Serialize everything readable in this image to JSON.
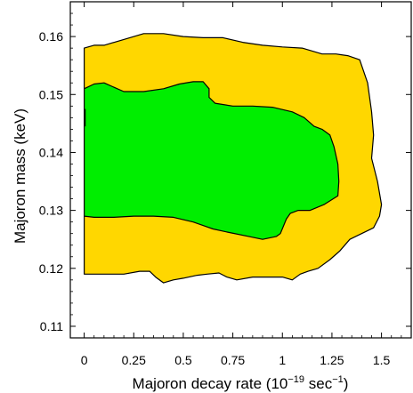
{
  "chart_data": {
    "type": "contour",
    "title": "",
    "xlabel": "Majoron decay rate (10−19 sec−1)",
    "xlabel_parts": {
      "prefix": "Majoron decay rate (10",
      "exp1": "−19",
      "mid": " sec",
      "exp2": "−1",
      "suffix": ")"
    },
    "ylabel": "Majoron mass (keV)",
    "xlim": [
      -0.07,
      1.65
    ],
    "ylim": [
      0.108,
      0.166
    ],
    "x_ticks": [
      "0",
      "0.25",
      "0.5",
      "0.75",
      "1",
      "1.25",
      "1.5"
    ],
    "x_tick_values": [
      0,
      0.25,
      0.5,
      0.75,
      1,
      1.25,
      1.5
    ],
    "y_ticks": [
      "0.11",
      "0.12",
      "0.13",
      "0.14",
      "0.15",
      "0.16"
    ],
    "y_tick_values": [
      0.11,
      0.12,
      0.13,
      0.14,
      0.15,
      0.16
    ],
    "grid": false,
    "legend": "none",
    "regions": [
      {
        "level": "outer",
        "color": "#FFD700",
        "points": [
          [
            0.0,
            0.158
          ],
          [
            0.05,
            0.1585
          ],
          [
            0.1,
            0.1585
          ],
          [
            0.2,
            0.1595
          ],
          [
            0.3,
            0.1605
          ],
          [
            0.4,
            0.1605
          ],
          [
            0.5,
            0.16
          ],
          [
            0.6,
            0.1598
          ],
          [
            0.7,
            0.1598
          ],
          [
            0.8,
            0.159
          ],
          [
            0.9,
            0.1585
          ],
          [
            1.0,
            0.1582
          ],
          [
            1.1,
            0.158
          ],
          [
            1.2,
            0.157
          ],
          [
            1.27,
            0.157
          ],
          [
            1.33,
            0.1567
          ],
          [
            1.39,
            0.156
          ],
          [
            1.43,
            0.152
          ],
          [
            1.45,
            0.147
          ],
          [
            1.46,
            0.143
          ],
          [
            1.45,
            0.139
          ],
          [
            1.48,
            0.135
          ],
          [
            1.5,
            0.131
          ],
          [
            1.49,
            0.129
          ],
          [
            1.46,
            0.127
          ],
          [
            1.4,
            0.126
          ],
          [
            1.34,
            0.125
          ],
          [
            1.29,
            0.123
          ],
          [
            1.24,
            0.1215
          ],
          [
            1.18,
            0.12
          ],
          [
            1.13,
            0.1195
          ],
          [
            1.09,
            0.119
          ],
          [
            1.05,
            0.118
          ],
          [
            1.0,
            0.1185
          ],
          [
            0.95,
            0.1185
          ],
          [
            0.85,
            0.1185
          ],
          [
            0.77,
            0.118
          ],
          [
            0.72,
            0.1185
          ],
          [
            0.68,
            0.1192
          ],
          [
            0.62,
            0.119
          ],
          [
            0.57,
            0.1188
          ],
          [
            0.5,
            0.1183
          ],
          [
            0.45,
            0.118
          ],
          [
            0.4,
            0.1175
          ],
          [
            0.36,
            0.1185
          ],
          [
            0.33,
            0.1195
          ],
          [
            0.28,
            0.1195
          ],
          [
            0.2,
            0.119
          ],
          [
            0.1,
            0.119
          ],
          [
            0.0,
            0.119
          ]
        ]
      },
      {
        "level": "inner",
        "color": "#00EE00",
        "points": [
          [
            0.0,
            0.151
          ],
          [
            0.05,
            0.1518
          ],
          [
            0.1,
            0.152
          ],
          [
            0.2,
            0.1505
          ],
          [
            0.3,
            0.1505
          ],
          [
            0.4,
            0.151
          ],
          [
            0.48,
            0.1518
          ],
          [
            0.55,
            0.1522
          ],
          [
            0.6,
            0.1522
          ],
          [
            0.63,
            0.151
          ],
          [
            0.63,
            0.1495
          ],
          [
            0.66,
            0.1485
          ],
          [
            0.75,
            0.148
          ],
          [
            0.85,
            0.148
          ],
          [
            0.95,
            0.1478
          ],
          [
            1.05,
            0.147
          ],
          [
            1.11,
            0.146
          ],
          [
            1.16,
            0.1445
          ],
          [
            1.2,
            0.144
          ],
          [
            1.24,
            0.143
          ],
          [
            1.26,
            0.141
          ],
          [
            1.28,
            0.138
          ],
          [
            1.285,
            0.135
          ],
          [
            1.28,
            0.1325
          ],
          [
            1.21,
            0.131
          ],
          [
            1.14,
            0.13
          ],
          [
            1.08,
            0.13
          ],
          [
            1.04,
            0.1295
          ],
          [
            1.02,
            0.1285
          ],
          [
            0.99,
            0.126
          ],
          [
            0.97,
            0.1255
          ],
          [
            0.9,
            0.125
          ],
          [
            0.83,
            0.1255
          ],
          [
            0.73,
            0.1262
          ],
          [
            0.65,
            0.1268
          ],
          [
            0.55,
            0.128
          ],
          [
            0.45,
            0.1288
          ],
          [
            0.35,
            0.129
          ],
          [
            0.25,
            0.129
          ],
          [
            0.15,
            0.1288
          ],
          [
            0.05,
            0.1288
          ],
          [
            0.0,
            0.129
          ]
        ]
      }
    ],
    "left_edge_marker": {
      "x": 0.0,
      "y_from": 0.1445,
      "y_to": 0.1475
    }
  }
}
